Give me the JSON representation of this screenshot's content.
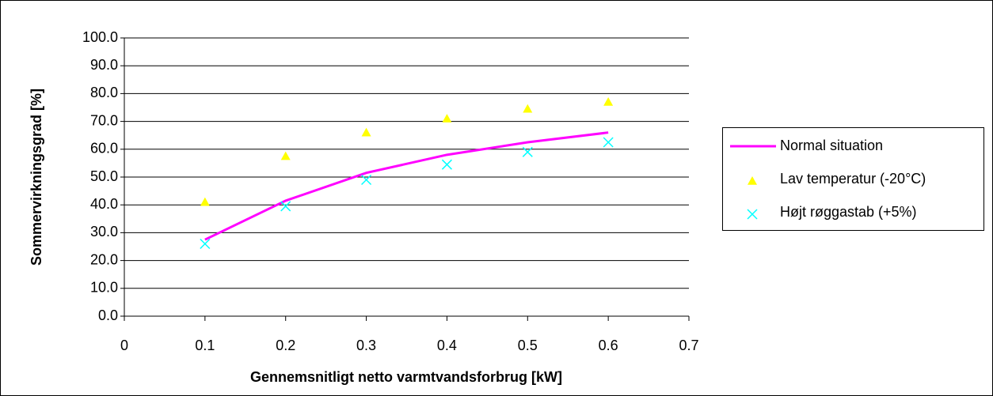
{
  "chart_data": {
    "type": "scatter",
    "x_label": "Gennemsnitligt netto varmtvandsforbrug [kW]",
    "y_label": "Sommervirkningsgrad [%]",
    "x": [
      0.1,
      0.2,
      0.3,
      0.4,
      0.5,
      0.6
    ],
    "series": [
      {
        "name": "Normal situation",
        "color": "#ff00ff",
        "style": "line",
        "values": [
          27.5,
          41.5,
          51.5,
          58,
          62.5,
          66
        ]
      },
      {
        "name": "Lav temperatur (-20°C)",
        "color": "#ffff00",
        "style": "triangle",
        "values": [
          41,
          57.5,
          66,
          71,
          74.5,
          77
        ]
      },
      {
        "name": "Højt røggastab (+5%)",
        "color": "#00ffff",
        "style": "cross",
        "values": [
          26,
          39.5,
          49,
          54.5,
          59,
          62.5
        ]
      }
    ],
    "xlim": [
      0,
      0.7
    ],
    "xticks": [
      0,
      0.1,
      0.2,
      0.3,
      0.4,
      0.5,
      0.6,
      0.7
    ],
    "ylim": [
      0,
      100
    ],
    "yticks": [
      {
        "value": 0,
        "label": "0.0"
      },
      {
        "value": 10,
        "label": "10.0"
      },
      {
        "value": 20,
        "label": "20.0"
      },
      {
        "value": 30,
        "label": "30.0"
      },
      {
        "value": 40,
        "label": "40.0"
      },
      {
        "value": 50,
        "label": "50.0"
      },
      {
        "value": 60,
        "label": "60.0"
      },
      {
        "value": 70,
        "label": "70.0"
      },
      {
        "value": 80,
        "label": "80.0"
      },
      {
        "value": 90,
        "label": "90.0"
      },
      {
        "value": 100,
        "label": "100.0"
      }
    ],
    "grid": true,
    "legend": "right"
  }
}
